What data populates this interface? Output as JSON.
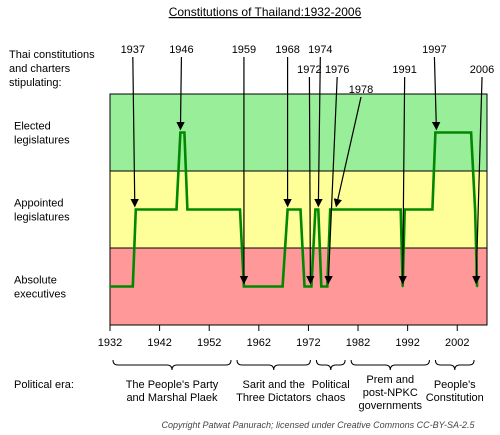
{
  "chart_data": {
    "type": "line",
    "title": "Constitutions of Thailand:1932-2006",
    "ylabel": [
      "Thai constitutions",
      "and charters",
      "stipulating:"
    ],
    "xlim": [
      1932,
      2008
    ],
    "ylim": [
      0,
      2
    ],
    "xticks": [
      1932,
      1942,
      1952,
      1962,
      1972,
      1982,
      1992,
      2002
    ],
    "bands": [
      {
        "name": "Elected legislatures",
        "lines": [
          "Elected",
          "legislatures"
        ],
        "color": "#99ee99"
      },
      {
        "name": "Appointed legislatures",
        "lines": [
          "Appointed",
          "legislatures"
        ],
        "color": "#ffff99"
      },
      {
        "name": "Absolute executives",
        "lines": [
          "Absolute",
          "executives"
        ],
        "color": "#ff9999"
      }
    ],
    "line_color": "#008800",
    "series": [
      {
        "x": [
          1932,
          1936.6,
          1937.2,
          1945.4,
          1946.2,
          1947.0,
          1947.6,
          1958.2,
          1959.0,
          1966.8,
          1967.8,
          1970.4,
          1971.2,
          1972.6,
          1973.4,
          1974.0,
          1974.6,
          1975.8,
          1976.4,
          1977.8,
          1978.4,
          1990.6,
          1991.0,
          1991.4,
          1997.0,
          1997.6,
          2004.8,
          2005.6,
          2006.0
        ],
        "y": [
          0,
          0,
          1,
          1,
          2,
          2,
          1,
          1,
          0,
          0,
          1,
          1,
          0,
          0,
          1,
          1,
          0,
          0,
          1,
          1,
          1,
          1,
          0,
          1,
          1,
          2,
          2,
          1,
          0
        ]
      }
    ],
    "annotations": [
      {
        "label": "1937",
        "x": 1937.0,
        "y": 1,
        "text_x": 1936.6,
        "row": 0
      },
      {
        "label": "1946",
        "x": 1946.2,
        "y": 2,
        "text_x": 1946.4,
        "row": 0
      },
      {
        "label": "1959",
        "x": 1959.0,
        "y": 0,
        "text_x": 1959.0,
        "row": 0
      },
      {
        "label": "1968",
        "x": 1967.8,
        "y": 1,
        "text_x": 1967.8,
        "row": 0
      },
      {
        "label": "1972",
        "x": 1972.4,
        "y": 0,
        "text_x": 1972.2,
        "row": 1
      },
      {
        "label": "1974",
        "x": 1974.0,
        "y": 1,
        "text_x": 1974.4,
        "row": 0
      },
      {
        "label": "1976",
        "x": 1976.0,
        "y": 0,
        "text_x": 1977.8,
        "row": 1
      },
      {
        "label": "1978",
        "x": 1977.6,
        "y": 1,
        "text_x": 1982.6,
        "row": 2
      },
      {
        "label": "1991",
        "x": 1991.0,
        "y": 0,
        "text_x": 1991.4,
        "row": 1
      },
      {
        "label": "1997",
        "x": 1997.8,
        "y": 2,
        "text_x": 1997.4,
        "row": 0
      },
      {
        "label": "2006",
        "x": 2005.8,
        "y": 0,
        "text_x": 2007.0,
        "row": 1
      }
    ],
    "eras_label": "Political era:",
    "eras": [
      {
        "start": 1932,
        "end": 1957,
        "lines": [
          "The People's Party",
          "and Marshal Plaek"
        ]
      },
      {
        "start": 1957,
        "end": 1973,
        "lines": [
          "Sarit and the",
          "Three Dictators"
        ]
      },
      {
        "start": 1973,
        "end": 1980,
        "lines": [
          "Political",
          "chaos"
        ]
      },
      {
        "start": 1980,
        "end": 1997,
        "lines": [
          "Prem and",
          "post-NPKC",
          "governments"
        ]
      },
      {
        "start": 1997,
        "end": 2006,
        "lines": [
          "People's",
          "Constitution"
        ]
      }
    ],
    "credit": "Copyright Patwat Panurach; licensed under Creative Commons CC-BY-SA-2.5"
  }
}
